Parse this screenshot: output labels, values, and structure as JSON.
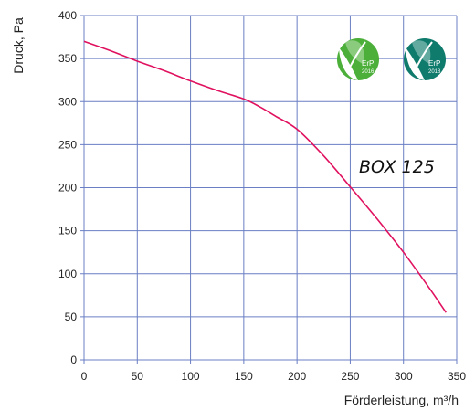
{
  "chart_data": {
    "type": "line",
    "title": "",
    "xlabel": "Förderleistung, m³/h",
    "ylabel": "Druck, Pa",
    "xlim": [
      0,
      350
    ],
    "ylim": [
      0,
      400
    ],
    "xticks": [
      0,
      50,
      100,
      150,
      200,
      250,
      300,
      350
    ],
    "yticks": [
      0,
      50,
      100,
      150,
      200,
      250,
      300,
      350,
      400
    ],
    "grid": true,
    "series": [
      {
        "name": "BOX 125",
        "color": "#e0115f",
        "x": [
          0,
          25,
          50,
          75,
          100,
          125,
          150,
          165,
          180,
          200,
          225,
          250,
          275,
          300,
          325,
          340
        ],
        "y": [
          370,
          359,
          347,
          336,
          324,
          313,
          303,
          294,
          283,
          268,
          237,
          201,
          164,
          125,
          82,
          55
        ]
      }
    ]
  },
  "badges": [
    {
      "text": "ErP",
      "year": "2016",
      "color": "#4caf3a",
      "icon": "leaf-icon"
    },
    {
      "text": "ErP",
      "year": "2018",
      "color": "#0f7b6c",
      "icon": "leaf-icon"
    }
  ]
}
